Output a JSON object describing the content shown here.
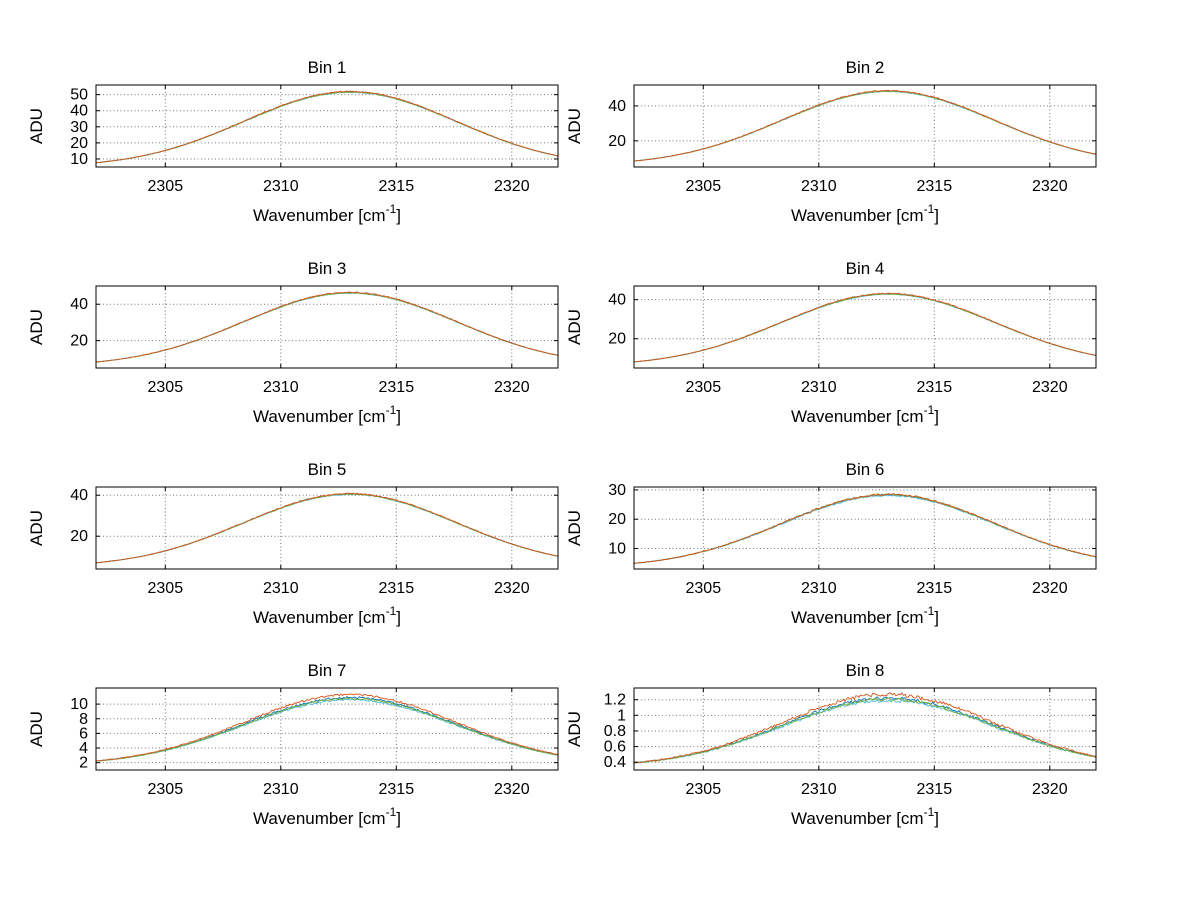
{
  "figure": {
    "background": "#ffffff",
    "n_subplots": 8,
    "grid_rows": 4,
    "grid_cols": 2
  },
  "palette": {
    "blue": "#0072BD",
    "cyan": "#4DBEEE",
    "green": "#77AC30",
    "orange": "#D95319",
    "axis": "#000000",
    "grid": "#777777"
  },
  "chart_data": [
    {
      "type": "line",
      "title": "Bin 1",
      "xlabel": {
        "text": "Wavenumber [cm⁻¹]",
        "base": "Wavenumber [cm",
        "sup": "-1",
        "close": "]"
      },
      "ylabel": "ADU",
      "xlim": [
        2302,
        2322
      ],
      "ylim": [
        5,
        56
      ],
      "xticks": [
        2305,
        2310,
        2315,
        2320
      ],
      "yticks": [
        10,
        20,
        30,
        40,
        50
      ],
      "peak_center_x": 2313,
      "gaussian_sigma": 4.6,
      "grid": true,
      "series": [
        {
          "name": "trace-blue",
          "color": "#0072BD",
          "baseline": 5,
          "amplitude": 46.7,
          "noise": 0.35,
          "seed": 11
        },
        {
          "name": "trace-cyan",
          "color": "#4DBEEE",
          "baseline": 5,
          "amplitude": 46.5,
          "noise": 0.3,
          "seed": 12
        },
        {
          "name": "trace-green",
          "color": "#77AC30",
          "baseline": 5,
          "amplitude": 46.6,
          "noise": 0.3,
          "seed": 13
        },
        {
          "name": "trace-orange",
          "color": "#D95319",
          "baseline": 5,
          "amplitude": 47.0,
          "noise": 0.35,
          "seed": 14
        }
      ]
    },
    {
      "type": "line",
      "title": "Bin 2",
      "xlabel": {
        "text": "Wavenumber [cm⁻¹]",
        "base": "Wavenumber [cm",
        "sup": "-1",
        "close": "]"
      },
      "ylabel": "ADU",
      "xlim": [
        2302,
        2322
      ],
      "ylim": [
        5,
        52
      ],
      "xticks": [
        2305,
        2310,
        2315,
        2320
      ],
      "yticks": [
        20,
        40
      ],
      "peak_center_x": 2313,
      "gaussian_sigma": 4.6,
      "grid": true,
      "series": [
        {
          "name": "trace-blue",
          "color": "#0072BD",
          "baseline": 6,
          "amplitude": 42.5,
          "noise": 0.3,
          "seed": 21
        },
        {
          "name": "trace-cyan",
          "color": "#4DBEEE",
          "baseline": 6,
          "amplitude": 42.3,
          "noise": 0.28,
          "seed": 22
        },
        {
          "name": "trace-green",
          "color": "#77AC30",
          "baseline": 6,
          "amplitude": 42.4,
          "noise": 0.28,
          "seed": 23
        },
        {
          "name": "trace-orange",
          "color": "#D95319",
          "baseline": 6,
          "amplitude": 42.8,
          "noise": 0.32,
          "seed": 24
        }
      ]
    },
    {
      "type": "line",
      "title": "Bin 3",
      "xlabel": {
        "text": "Wavenumber [cm⁻¹]",
        "base": "Wavenumber [cm",
        "sup": "-1",
        "close": "]"
      },
      "ylabel": "ADU",
      "xlim": [
        2302,
        2322
      ],
      "ylim": [
        5,
        50
      ],
      "xticks": [
        2305,
        2310,
        2315,
        2320
      ],
      "yticks": [
        20,
        40
      ],
      "peak_center_x": 2313,
      "gaussian_sigma": 4.6,
      "grid": true,
      "series": [
        {
          "name": "trace-blue",
          "color": "#0072BD",
          "baseline": 6,
          "amplitude": 40.3,
          "noise": 0.28,
          "seed": 31
        },
        {
          "name": "trace-cyan",
          "color": "#4DBEEE",
          "baseline": 6,
          "amplitude": 40.1,
          "noise": 0.26,
          "seed": 32
        },
        {
          "name": "trace-green",
          "color": "#77AC30",
          "baseline": 6,
          "amplitude": 40.2,
          "noise": 0.26,
          "seed": 33
        },
        {
          "name": "trace-orange",
          "color": "#D95319",
          "baseline": 6,
          "amplitude": 40.5,
          "noise": 0.3,
          "seed": 34
        }
      ]
    },
    {
      "type": "line",
      "title": "Bin 4",
      "xlabel": {
        "text": "Wavenumber [cm⁻¹]",
        "base": "Wavenumber [cm",
        "sup": "-1",
        "close": "]"
      },
      "ylabel": "ADU",
      "xlim": [
        2302,
        2322
      ],
      "ylim": [
        5,
        47
      ],
      "xticks": [
        2305,
        2310,
        2315,
        2320
      ],
      "yticks": [
        20,
        40
      ],
      "peak_center_x": 2313,
      "gaussian_sigma": 4.6,
      "grid": true,
      "series": [
        {
          "name": "trace-blue",
          "color": "#0072BD",
          "baseline": 6,
          "amplitude": 37.0,
          "noise": 0.27,
          "seed": 41
        },
        {
          "name": "trace-cyan",
          "color": "#4DBEEE",
          "baseline": 6,
          "amplitude": 36.8,
          "noise": 0.25,
          "seed": 42
        },
        {
          "name": "trace-green",
          "color": "#77AC30",
          "baseline": 6,
          "amplitude": 36.9,
          "noise": 0.25,
          "seed": 43
        },
        {
          "name": "trace-orange",
          "color": "#D95319",
          "baseline": 6,
          "amplitude": 37.2,
          "noise": 0.28,
          "seed": 44
        }
      ]
    },
    {
      "type": "line",
      "title": "Bin 5",
      "xlabel": {
        "text": "Wavenumber [cm⁻¹]",
        "base": "Wavenumber [cm",
        "sup": "-1",
        "close": "]"
      },
      "ylabel": "ADU",
      "xlim": [
        2302,
        2322
      ],
      "ylim": [
        4,
        44
      ],
      "xticks": [
        2305,
        2310,
        2315,
        2320
      ],
      "yticks": [
        20,
        40
      ],
      "peak_center_x": 2313,
      "gaussian_sigma": 4.6,
      "grid": true,
      "series": [
        {
          "name": "trace-blue",
          "color": "#0072BD",
          "baseline": 5,
          "amplitude": 35.6,
          "noise": 0.26,
          "seed": 51
        },
        {
          "name": "trace-cyan",
          "color": "#4DBEEE",
          "baseline": 5,
          "amplitude": 35.4,
          "noise": 0.24,
          "seed": 52
        },
        {
          "name": "trace-green",
          "color": "#77AC30",
          "baseline": 5,
          "amplitude": 35.5,
          "noise": 0.24,
          "seed": 53
        },
        {
          "name": "trace-orange",
          "color": "#D95319",
          "baseline": 5,
          "amplitude": 35.8,
          "noise": 0.27,
          "seed": 54
        }
      ]
    },
    {
      "type": "line",
      "title": "Bin 6",
      "xlabel": {
        "text": "Wavenumber [cm⁻¹]",
        "base": "Wavenumber [cm",
        "sup": "-1",
        "close": "]"
      },
      "ylabel": "ADU",
      "xlim": [
        2302,
        2322
      ],
      "ylim": [
        3,
        31
      ],
      "xticks": [
        2305,
        2310,
        2315,
        2320
      ],
      "yticks": [
        10,
        20,
        30
      ],
      "peak_center_x": 2313,
      "gaussian_sigma": 4.6,
      "grid": true,
      "series": [
        {
          "name": "trace-blue",
          "color": "#0072BD",
          "baseline": 3.5,
          "amplitude": 24.8,
          "noise": 0.3,
          "seed": 61
        },
        {
          "name": "trace-cyan",
          "color": "#4DBEEE",
          "baseline": 3.5,
          "amplitude": 24.6,
          "noise": 0.28,
          "seed": 62
        },
        {
          "name": "trace-green",
          "color": "#77AC30",
          "baseline": 3.5,
          "amplitude": 24.9,
          "noise": 0.3,
          "seed": 63
        },
        {
          "name": "trace-orange",
          "color": "#D95319",
          "baseline": 3.5,
          "amplitude": 25.0,
          "noise": 0.32,
          "seed": 64
        }
      ]
    },
    {
      "type": "line",
      "title": "Bin 7",
      "xlabel": {
        "text": "Wavenumber [cm⁻¹]",
        "base": "Wavenumber [cm",
        "sup": "-1",
        "close": "]"
      },
      "ylabel": "ADU",
      "xlim": [
        2302,
        2322
      ],
      "ylim": [
        1,
        12.2
      ],
      "xticks": [
        2305,
        2310,
        2315,
        2320
      ],
      "yticks": [
        2,
        4,
        6,
        8,
        10
      ],
      "peak_center_x": 2313,
      "gaussian_sigma": 4.6,
      "grid": true,
      "series": [
        {
          "name": "trace-blue",
          "color": "#0072BD",
          "baseline": 1.7,
          "amplitude": 9.2,
          "noise": 0.14,
          "seed": 71
        },
        {
          "name": "trace-cyan",
          "color": "#4DBEEE",
          "baseline": 1.7,
          "amplitude": 8.9,
          "noise": 0.12,
          "seed": 72
        },
        {
          "name": "trace-green",
          "color": "#77AC30",
          "baseline": 1.7,
          "amplitude": 9.05,
          "noise": 0.12,
          "seed": 73
        },
        {
          "name": "trace-orange",
          "color": "#D95319",
          "baseline": 1.7,
          "amplitude": 9.6,
          "noise": 0.15,
          "seed": 74
        }
      ]
    },
    {
      "type": "line",
      "title": "Bin 8",
      "xlabel": {
        "text": "Wavenumber [cm⁻¹]",
        "base": "Wavenumber [cm",
        "sup": "-1",
        "close": "]"
      },
      "ylabel": "ADU",
      "xlim": [
        2302,
        2322
      ],
      "ylim": [
        0.3,
        1.35
      ],
      "xticks": [
        2305,
        2310,
        2315,
        2320
      ],
      "yticks": [
        0.4,
        0.6,
        0.8,
        1,
        1.2
      ],
      "peak_center_x": 2313,
      "gaussian_sigma": 4.6,
      "grid": true,
      "series": [
        {
          "name": "trace-blue",
          "color": "#0072BD",
          "baseline": 0.34,
          "amplitude": 0.88,
          "noise": 0.022,
          "seed": 81
        },
        {
          "name": "trace-cyan",
          "color": "#4DBEEE",
          "baseline": 0.34,
          "amplitude": 0.85,
          "noise": 0.02,
          "seed": 82
        },
        {
          "name": "trace-green",
          "color": "#77AC30",
          "baseline": 0.34,
          "amplitude": 0.865,
          "noise": 0.02,
          "seed": 83
        },
        {
          "name": "trace-orange",
          "color": "#D95319",
          "baseline": 0.34,
          "amplitude": 0.93,
          "noise": 0.024,
          "seed": 84
        }
      ]
    }
  ]
}
